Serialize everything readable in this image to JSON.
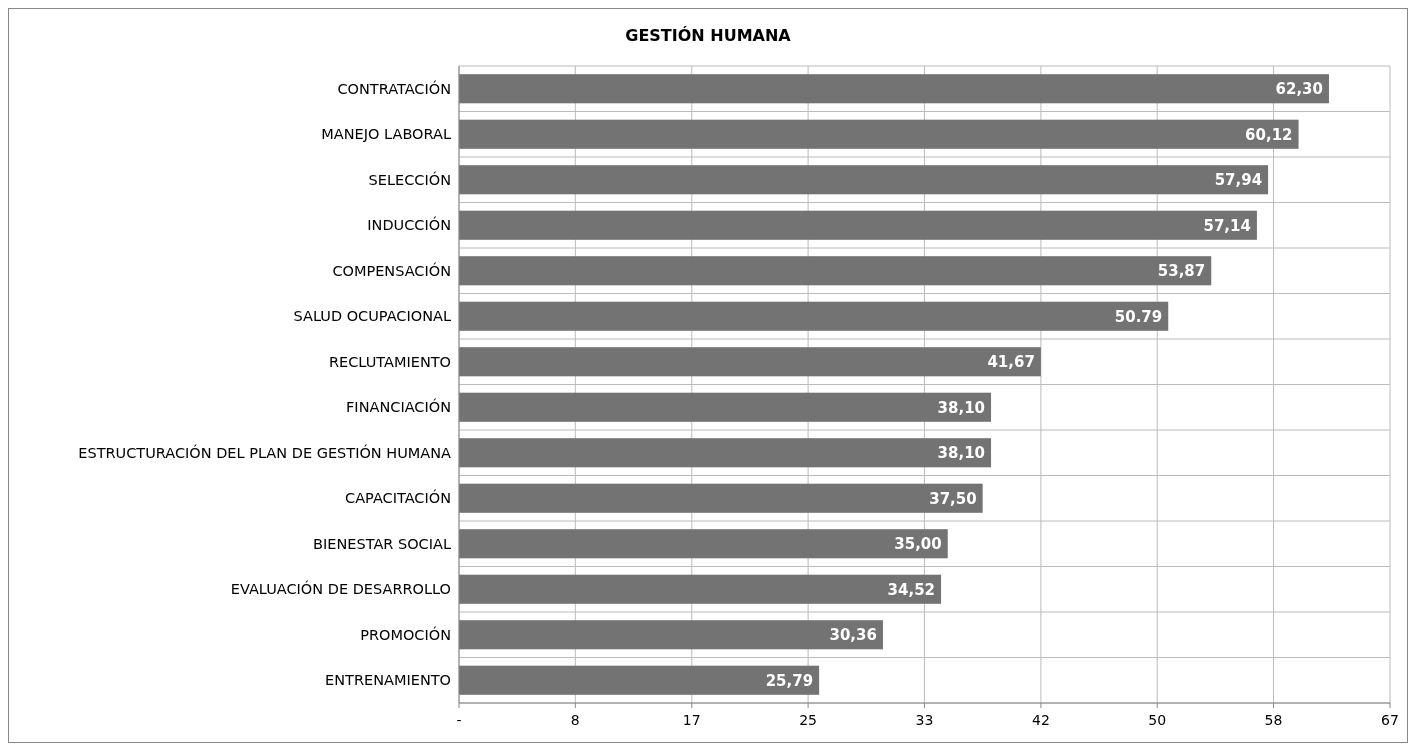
{
  "chart_data": {
    "type": "bar",
    "title": "GESTIÓN HUMANA",
    "orientation": "horizontal",
    "categories": [
      "CONTRATACIÓN",
      "MANEJO LABORAL",
      "SELECCIÓN",
      "INDUCCIÓN",
      "COMPENSACIÓN",
      "SALUD OCUPACIONAL",
      "RECLUTAMIENTO",
      "FINANCIACIÓN",
      "ESTRUCTURACIÓN DEL PLAN DE GESTIÓN HUMANA",
      "CAPACITACIÓN",
      "BIENESTAR SOCIAL",
      "EVALUACIÓN DE DESARROLLO",
      "PROMOCIÓN",
      "ENTRENAMIENTO"
    ],
    "values": [
      62.3,
      60.12,
      57.94,
      57.14,
      53.87,
      50.79,
      41.67,
      38.1,
      38.1,
      37.5,
      35.0,
      34.52,
      30.36,
      25.79
    ],
    "value_labels": [
      "62,30",
      "60,12",
      "57,94",
      "57,14",
      "53,87",
      "50.79",
      "41,67",
      "38,10",
      "38,10",
      "37,50",
      "35,00",
      "34,52",
      "30,36",
      "25,79"
    ],
    "color": "#737373",
    "xlim": [
      0,
      66.67
    ],
    "xticks": [
      {
        "value": 0,
        "label": "-"
      },
      {
        "value": 8.33,
        "label": "8"
      },
      {
        "value": 16.67,
        "label": "17"
      },
      {
        "value": 25,
        "label": "25"
      },
      {
        "value": 33.33,
        "label": "33"
      },
      {
        "value": 41.67,
        "label": "42"
      },
      {
        "value": 50,
        "label": "50"
      },
      {
        "value": 58.33,
        "label": "58"
      },
      {
        "value": 66.67,
        "label": "67"
      }
    ],
    "grid": true
  }
}
